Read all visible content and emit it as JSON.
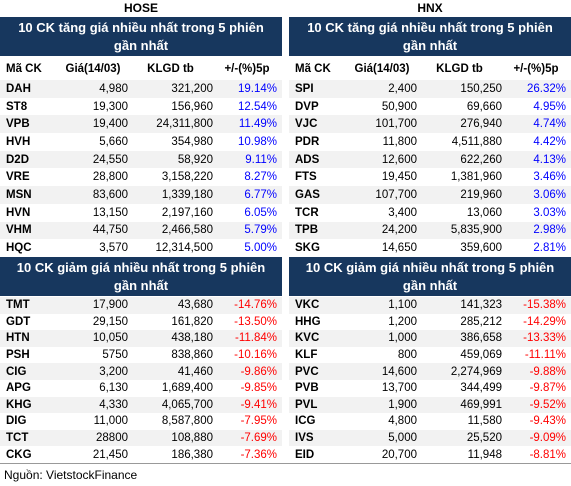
{
  "exchanges": [
    {
      "name": "HOSE",
      "gainers": {
        "title": "10 CK tăng giá nhiều nhất trong 5 phiên gần nhất",
        "columns": [
          "Mã CK",
          "Giá(14/03)",
          "KLGD tb",
          "+/-(%)5p"
        ],
        "rows": [
          [
            "DAH",
            "4,980",
            "321,200",
            "19.14%"
          ],
          [
            "ST8",
            "19,300",
            "156,960",
            "12.54%"
          ],
          [
            "VPB",
            "19,400",
            "24,311,800",
            "11.49%"
          ],
          [
            "HVH",
            "5,660",
            "354,980",
            "10.98%"
          ],
          [
            "D2D",
            "24,550",
            "58,920",
            "9.11%"
          ],
          [
            "VRE",
            "28,800",
            "3,158,220",
            "8.27%"
          ],
          [
            "MSN",
            "83,600",
            "1,339,180",
            "6.77%"
          ],
          [
            "HVN",
            "13,150",
            "2,197,160",
            "6.05%"
          ],
          [
            "VHM",
            "44,750",
            "2,466,580",
            "5.79%"
          ],
          [
            "HQC",
            "3,570",
            "12,314,500",
            "5.00%"
          ]
        ]
      },
      "losers": {
        "title": "10 CK giảm giá nhiều nhất trong 5 phiên gần nhất",
        "rows": [
          [
            "TMT",
            "17,900",
            "43,680",
            "-14.76%"
          ],
          [
            "GDT",
            "29,150",
            "161,820",
            "-13.50%"
          ],
          [
            "HTN",
            "10,050",
            "438,180",
            "-11.84%"
          ],
          [
            "PSH",
            "5750",
            "838,860",
            "-10.16%"
          ],
          [
            "CIG",
            "3,200",
            "41,460",
            "-9.86%"
          ],
          [
            "APG",
            "6,130",
            "1,689,400",
            "-9.85%"
          ],
          [
            "KHG",
            "4,330",
            "4,065,700",
            "-9.41%"
          ],
          [
            "DIG",
            "11,000",
            "8,587,800",
            "-7.95%"
          ],
          [
            "TCT",
            "28800",
            "108,880",
            "-7.69%"
          ],
          [
            "CKG",
            "21,450",
            "186,380",
            "-7.36%"
          ]
        ]
      }
    },
    {
      "name": "HNX",
      "gainers": {
        "title": "10 CK tăng giá nhiều nhất trong 5 phiên gần nhất",
        "columns": [
          "Mã CK",
          "Giá(14/03)",
          "KLGD tb",
          "+/-(%)5p"
        ],
        "rows": [
          [
            "SPI",
            "2,400",
            "150,250",
            "26.32%"
          ],
          [
            "DVP",
            "50,900",
            "69,660",
            "4.95%"
          ],
          [
            "VJC",
            "101,700",
            "276,940",
            "4.74%"
          ],
          [
            "PDR",
            "11,800",
            "4,511,880",
            "4.42%"
          ],
          [
            "ADS",
            "12,600",
            "622,260",
            "4.13%"
          ],
          [
            "FTS",
            "19,450",
            "1,381,960",
            "3.46%"
          ],
          [
            "GAS",
            "107,700",
            "219,960",
            "3.06%"
          ],
          [
            "TCR",
            "3,400",
            "13,060",
            "3.03%"
          ],
          [
            "TPB",
            "24,200",
            "5,835,900",
            "2.98%"
          ],
          [
            "SKG",
            "14,650",
            "359,600",
            "2.81%"
          ]
        ]
      },
      "losers": {
        "title": "10 CK giảm giá nhiều nhất trong 5 phiên gần nhất",
        "rows": [
          [
            "VKC",
            "1,100",
            "141,323",
            "-15.38%"
          ],
          [
            "HHG",
            "1,200",
            "285,212",
            "-14.29%"
          ],
          [
            "KVC",
            "1,000",
            "386,658",
            "-13.33%"
          ],
          [
            "KLF",
            "800",
            "459,069",
            "-11.11%"
          ],
          [
            "PVC",
            "14,600",
            "2,274,969",
            "-9.88%"
          ],
          [
            "PVB",
            "13,700",
            "344,499",
            "-9.87%"
          ],
          [
            "PVL",
            "1,900",
            "469,991",
            "-9.52%"
          ],
          [
            "ICG",
            "4,800",
            "11,580",
            "-9.43%"
          ],
          [
            "IVS",
            "5,000",
            "25,520",
            "-9.09%"
          ],
          [
            "EID",
            "20,700",
            "11,948",
            "-8.81%"
          ]
        ]
      }
    }
  ],
  "source": "Nguồn: VietstockFinance"
}
